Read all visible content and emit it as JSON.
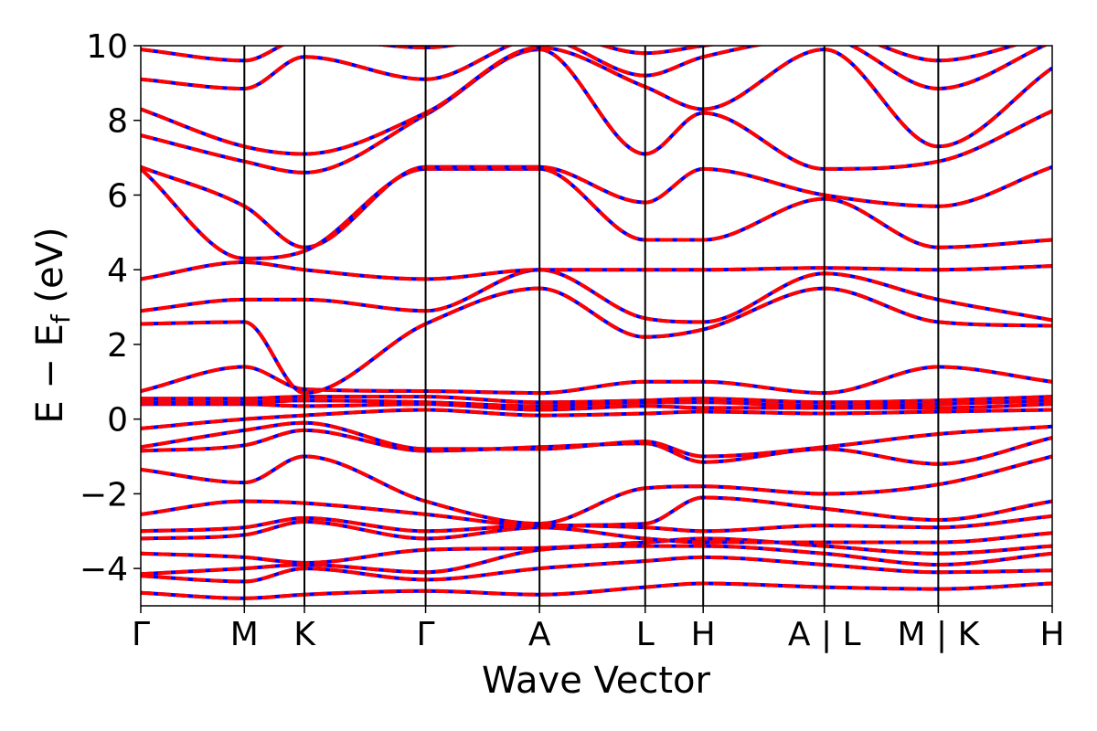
{
  "chart_data": {
    "type": "line",
    "title": "",
    "xlabel": "Wave Vector",
    "ylabel": "E − E_f (eV)",
    "ylabel_parts": {
      "pre": "E − E",
      "sub": "f",
      "post": " (eV)"
    },
    "ylim": [
      -5,
      10
    ],
    "yticks": [
      -4,
      -2,
      0,
      2,
      4,
      6,
      8,
      10
    ],
    "ytick_labels": [
      "−4",
      "−2",
      "0",
      "2",
      "4",
      "6",
      "8",
      "10"
    ],
    "xlim": [
      0,
      8.8
    ],
    "high_symmetry_points": [
      0,
      1.0,
      1.58,
      2.75,
      3.85,
      4.87,
      5.43,
      6.6,
      7.7,
      8.8
    ],
    "xtick_labels": [
      "Γ",
      "M",
      "K",
      "Γ",
      "A",
      "L",
      "H",
      "A | L",
      "M | K",
      "H"
    ],
    "grid": false,
    "legend": "none",
    "series": [
      {
        "color": "#0000ff",
        "style": "solid"
      },
      {
        "color": "#ff0000",
        "style": "dashed"
      }
    ],
    "bands": [
      [
        [
          0,
          -4.65
        ],
        [
          1.0,
          -4.8
        ],
        [
          1.58,
          -4.7
        ],
        [
          2.75,
          -4.6
        ],
        [
          3.85,
          -4.7
        ],
        [
          4.87,
          -4.5
        ],
        [
          5.43,
          -4.4
        ],
        [
          6.6,
          -4.5
        ],
        [
          7.7,
          -4.55
        ],
        [
          8.8,
          -4.4
        ]
      ],
      [
        [
          0,
          -4.2
        ],
        [
          1.0,
          -4.35
        ],
        [
          1.58,
          -4.0
        ],
        [
          2.75,
          -4.3
        ],
        [
          3.85,
          -4.0
        ],
        [
          4.87,
          -3.8
        ],
        [
          5.43,
          -3.7
        ],
        [
          6.6,
          -3.9
        ],
        [
          7.7,
          -4.1
        ],
        [
          8.8,
          -4.05
        ]
      ],
      [
        [
          0,
          -4.15
        ],
        [
          1.0,
          -4.0
        ],
        [
          1.58,
          -3.9
        ],
        [
          2.75,
          -4.1
        ],
        [
          3.85,
          -3.5
        ],
        [
          4.87,
          -3.4
        ],
        [
          5.43,
          -3.4
        ],
        [
          6.6,
          -3.6
        ],
        [
          7.7,
          -3.9
        ],
        [
          8.8,
          -3.6
        ]
      ],
      [
        [
          0,
          -3.6
        ],
        [
          1.0,
          -3.7
        ],
        [
          1.58,
          -3.85
        ],
        [
          2.75,
          -3.5
        ],
        [
          3.85,
          -3.45
        ],
        [
          4.87,
          -3.3
        ],
        [
          5.43,
          -3.2
        ],
        [
          6.6,
          -3.4
        ],
        [
          7.7,
          -3.6
        ],
        [
          8.8,
          -3.4
        ]
      ],
      [
        [
          0,
          -3.2
        ],
        [
          1.0,
          -3.1
        ],
        [
          1.58,
          -2.75
        ],
        [
          2.75,
          -3.2
        ],
        [
          3.85,
          -2.9
        ],
        [
          4.87,
          -3.2
        ],
        [
          5.43,
          -3.3
        ],
        [
          6.6,
          -3.3
        ],
        [
          7.7,
          -3.3
        ],
        [
          8.8,
          -3.05
        ]
      ],
      [
        [
          0,
          -3.0
        ],
        [
          1.0,
          -2.9
        ],
        [
          1.58,
          -2.65
        ],
        [
          2.75,
          -3.0
        ],
        [
          3.85,
          -2.85
        ],
        [
          4.87,
          -2.9
        ],
        [
          5.43,
          -3.0
        ],
        [
          6.6,
          -2.85
        ],
        [
          7.7,
          -2.9
        ],
        [
          8.8,
          -2.6
        ]
      ],
      [
        [
          0,
          -2.55
        ],
        [
          1.0,
          -2.2
        ],
        [
          1.58,
          -2.25
        ],
        [
          2.75,
          -2.55
        ],
        [
          3.85,
          -2.85
        ],
        [
          4.87,
          -2.8
        ],
        [
          5.43,
          -2.1
        ],
        [
          6.6,
          -2.4
        ],
        [
          7.7,
          -2.7
        ],
        [
          8.8,
          -2.2
        ]
      ],
      [
        [
          0,
          -1.35
        ],
        [
          1.0,
          -1.7
        ],
        [
          1.58,
          -1.0
        ],
        [
          2.75,
          -2.2
        ],
        [
          3.85,
          -2.8
        ],
        [
          4.87,
          -1.85
        ],
        [
          5.43,
          -1.8
        ],
        [
          6.6,
          -2.0
        ],
        [
          7.7,
          -1.75
        ],
        [
          8.8,
          -1.0
        ]
      ],
      [
        [
          0,
          -0.85
        ],
        [
          1.0,
          -0.7
        ],
        [
          1.58,
          -0.3
        ],
        [
          2.75,
          -0.85
        ],
        [
          3.85,
          -0.75
        ],
        [
          4.87,
          -0.65
        ],
        [
          5.43,
          -1.15
        ],
        [
          6.6,
          -0.8
        ],
        [
          7.7,
          -1.2
        ],
        [
          8.8,
          -0.5
        ]
      ],
      [
        [
          0,
          -0.75
        ],
        [
          1.0,
          -0.3
        ],
        [
          1.58,
          -0.1
        ],
        [
          2.75,
          -0.8
        ],
        [
          3.85,
          -0.8
        ],
        [
          4.87,
          -0.6
        ],
        [
          5.43,
          -1.0
        ],
        [
          6.6,
          -0.75
        ],
        [
          7.7,
          -0.4
        ],
        [
          8.8,
          -0.2
        ]
      ],
      [
        [
          0,
          -0.25
        ],
        [
          1.0,
          0.0
        ],
        [
          1.58,
          0.1
        ],
        [
          2.75,
          0.25
        ],
        [
          3.85,
          0.1
        ],
        [
          4.87,
          0.15
        ],
        [
          5.43,
          0.2
        ],
        [
          6.6,
          0.15
        ],
        [
          7.7,
          0.2
        ],
        [
          8.8,
          0.25
        ]
      ],
      [
        [
          0,
          0.4
        ],
        [
          1.0,
          0.4
        ],
        [
          1.58,
          0.35
        ],
        [
          2.75,
          0.4
        ],
        [
          3.85,
          0.25
        ],
        [
          4.87,
          0.35
        ],
        [
          5.43,
          0.3
        ],
        [
          6.6,
          0.3
        ],
        [
          7.7,
          0.3
        ],
        [
          8.8,
          0.4
        ]
      ],
      [
        [
          0,
          0.45
        ],
        [
          1.0,
          0.45
        ],
        [
          1.58,
          0.5
        ],
        [
          2.75,
          0.45
        ],
        [
          3.85,
          0.35
        ],
        [
          4.87,
          0.45
        ],
        [
          5.43,
          0.45
        ],
        [
          6.6,
          0.35
        ],
        [
          7.7,
          0.4
        ],
        [
          8.8,
          0.5
        ]
      ],
      [
        [
          0,
          0.55
        ],
        [
          1.0,
          0.55
        ],
        [
          1.58,
          0.6
        ],
        [
          2.75,
          0.6
        ],
        [
          3.85,
          0.45
        ],
        [
          4.87,
          0.5
        ],
        [
          5.43,
          0.55
        ],
        [
          6.6,
          0.45
        ],
        [
          7.7,
          0.5
        ],
        [
          8.8,
          0.6
        ]
      ],
      [
        [
          0,
          0.75
        ],
        [
          1.0,
          1.4
        ],
        [
          1.58,
          0.8
        ],
        [
          2.75,
          0.75
        ],
        [
          3.85,
          0.7
        ],
        [
          4.87,
          1.0
        ],
        [
          5.43,
          1.0
        ],
        [
          6.6,
          0.7
        ],
        [
          7.7,
          1.4
        ],
        [
          8.8,
          1.0
        ]
      ],
      [
        [
          0,
          2.55
        ],
        [
          1.0,
          2.6
        ],
        [
          1.58,
          0.7
        ],
        [
          2.75,
          2.55
        ],
        [
          3.85,
          3.5
        ],
        [
          4.87,
          2.2
        ],
        [
          5.43,
          2.4
        ],
        [
          6.6,
          3.5
        ],
        [
          7.7,
          2.6
        ],
        [
          8.8,
          2.5
        ]
      ],
      [
        [
          0,
          2.9
        ],
        [
          1.0,
          3.2
        ],
        [
          1.58,
          3.2
        ],
        [
          2.75,
          2.9
        ],
        [
          3.85,
          4.0
        ],
        [
          4.87,
          2.7
        ],
        [
          5.43,
          2.6
        ],
        [
          6.6,
          3.9
        ],
        [
          7.7,
          3.2
        ],
        [
          8.8,
          2.65
        ]
      ],
      [
        [
          0,
          3.75
        ],
        [
          1.0,
          4.2
        ],
        [
          1.58,
          4.0
        ],
        [
          2.75,
          3.75
        ],
        [
          3.85,
          4.0
        ],
        [
          4.87,
          4.0
        ],
        [
          5.43,
          4.0
        ],
        [
          6.6,
          4.05
        ],
        [
          7.7,
          4.0
        ],
        [
          8.8,
          4.1
        ]
      ],
      [
        [
          0,
          6.7
        ],
        [
          1.0,
          4.3
        ],
        [
          1.58,
          4.5
        ],
        [
          2.75,
          6.7
        ],
        [
          3.85,
          6.7
        ],
        [
          4.87,
          4.8
        ],
        [
          5.43,
          4.8
        ],
        [
          6.6,
          5.9
        ],
        [
          7.7,
          4.6
        ],
        [
          8.8,
          4.8
        ]
      ],
      [
        [
          0,
          6.75
        ],
        [
          1.0,
          5.7
        ],
        [
          1.58,
          4.6
        ],
        [
          2.75,
          6.75
        ],
        [
          3.85,
          6.75
        ],
        [
          4.87,
          5.8
        ],
        [
          5.43,
          6.7
        ],
        [
          6.6,
          6.0
        ],
        [
          7.7,
          5.7
        ],
        [
          8.8,
          6.75
        ]
      ],
      [
        [
          0,
          7.6
        ],
        [
          1.0,
          6.9
        ],
        [
          1.58,
          6.6
        ],
        [
          2.75,
          8.15
        ],
        [
          3.85,
          9.9
        ],
        [
          4.87,
          7.1
        ],
        [
          5.43,
          8.2
        ],
        [
          6.6,
          6.7
        ],
        [
          7.7,
          6.9
        ],
        [
          8.8,
          8.25
        ]
      ],
      [
        [
          0,
          8.3
        ],
        [
          1.0,
          7.3
        ],
        [
          1.58,
          7.1
        ],
        [
          2.75,
          8.2
        ],
        [
          3.85,
          9.95
        ],
        [
          4.87,
          8.9
        ],
        [
          5.43,
          8.3
        ],
        [
          6.6,
          9.9
        ],
        [
          7.7,
          7.3
        ],
        [
          8.8,
          9.4
        ]
      ],
      [
        [
          0,
          9.1
        ],
        [
          1.0,
          8.85
        ],
        [
          1.58,
          9.7
        ],
        [
          2.75,
          9.1
        ],
        [
          3.85,
          10.2
        ],
        [
          4.87,
          9.2
        ],
        [
          5.43,
          9.7
        ],
        [
          6.6,
          10.2
        ],
        [
          7.7,
          8.85
        ],
        [
          8.8,
          10.1
        ]
      ],
      [
        [
          0,
          9.9
        ],
        [
          1.0,
          9.6
        ],
        [
          1.58,
          10.2
        ],
        [
          2.75,
          9.95
        ],
        [
          3.85,
          10.4
        ],
        [
          4.87,
          9.8
        ],
        [
          5.43,
          10.0
        ],
        [
          6.6,
          10.4
        ],
        [
          7.7,
          9.6
        ],
        [
          8.8,
          10.3
        ]
      ]
    ]
  }
}
